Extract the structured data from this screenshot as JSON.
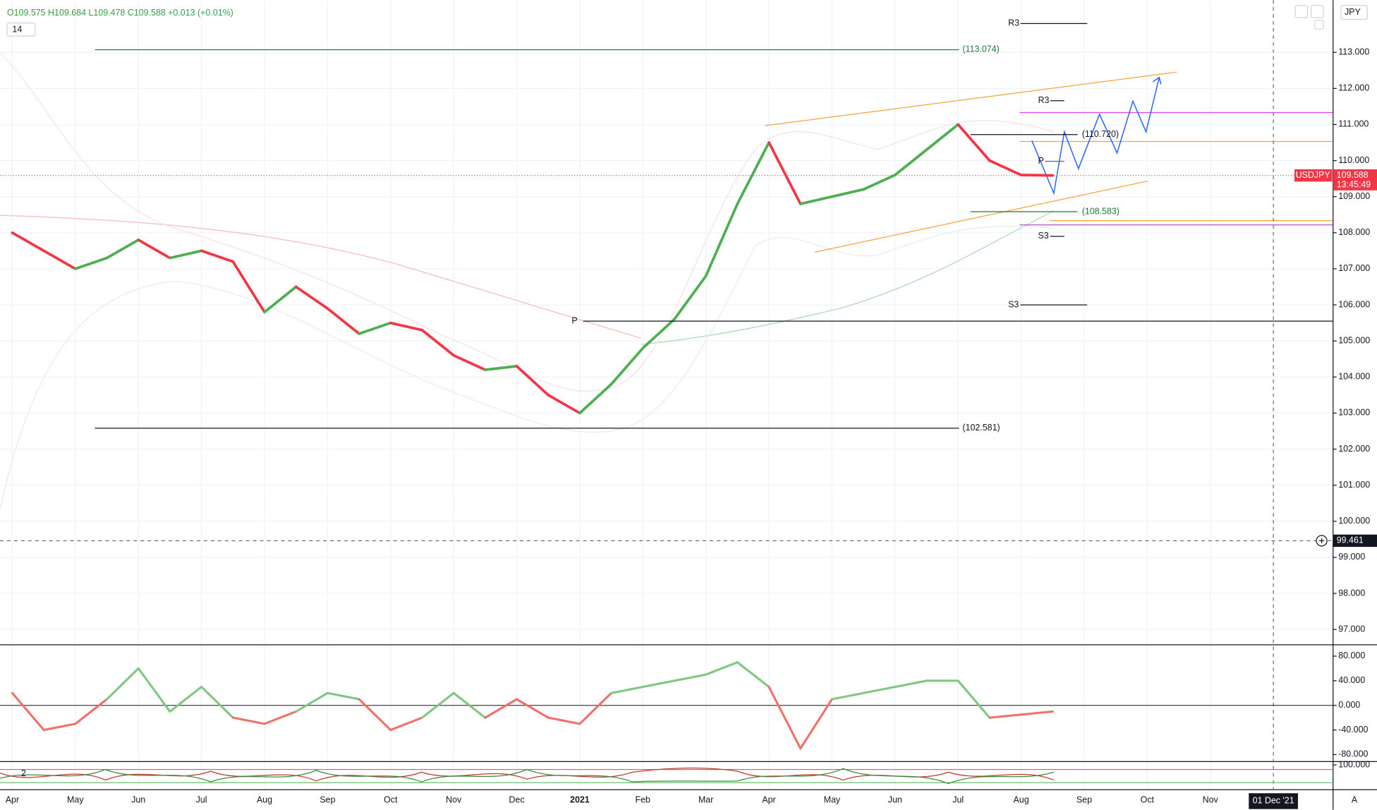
{
  "header": {
    "ohlc": "O109.575 H109.684 L109.478 C109.588 +0.013 (+0.01%)",
    "length": "14",
    "currency": "JPY",
    "auto": "A"
  },
  "chart_data": [
    {
      "type": "line",
      "series": [
        {
          "name": "USDJPY",
          "color": "#4caf50",
          "down_color": "#f23645",
          "values": [
            108.0,
            107.5,
            107.0,
            107.3,
            107.8,
            107.3,
            107.5,
            107.2,
            105.8,
            106.5,
            105.9,
            105.2,
            105.5,
            105.3,
            104.6,
            104.2,
            104.3,
            103.5,
            103.0,
            103.8,
            104.8,
            105.6,
            106.8,
            108.8,
            110.5,
            108.8,
            109.0,
            109.2,
            109.6,
            110.3,
            111.0,
            110.0,
            109.6,
            109.588,
            null,
            null,
            null,
            null,
            null,
            null
          ]
        }
      ],
      "categories": [
        "Apr",
        null,
        "May",
        null,
        "Jun",
        null,
        "Jul",
        null,
        "Aug",
        null,
        "Sep",
        null,
        "Oct",
        null,
        "Nov",
        null,
        "Dec",
        null,
        "2021",
        null,
        "Feb",
        null,
        "Mar",
        null,
        "Apr",
        null,
        "May",
        null,
        "Jun",
        null,
        "Jul",
        null,
        "Aug",
        null,
        "Sep",
        null,
        "Oct",
        null,
        "Nov",
        null
      ],
      "ylim": [
        96.6,
        114.45
      ],
      "yticks": [
        {
          "value": 113,
          "label": "113.000"
        },
        {
          "value": 112,
          "label": "112.000"
        },
        {
          "value": 111,
          "label": "111.000"
        },
        {
          "value": 110,
          "label": "110.000"
        },
        {
          "value": 109,
          "label": "109.000"
        },
        {
          "value": 108,
          "label": "108.000"
        },
        {
          "value": 107,
          "label": "107.000"
        },
        {
          "value": 106,
          "label": "106.000"
        },
        {
          "value": 105,
          "label": "105.000"
        },
        {
          "value": 104,
          "label": "104.000"
        },
        {
          "value": 103,
          "label": "103.000"
        },
        {
          "value": 102,
          "label": "102.000"
        },
        {
          "value": 101,
          "label": "101.000"
        },
        {
          "value": 100,
          "label": "100.000"
        },
        {
          "value": 99,
          "label": "99.000"
        },
        {
          "value": 98,
          "label": "98.000"
        },
        {
          "value": 97,
          "label": "97.000"
        }
      ],
      "grid": true,
      "levels": [
        {
          "label": "(113.074)",
          "value": 113.074,
          "color": "#1b7a3a"
        },
        {
          "label": "(110.720)",
          "value": 110.72,
          "color": "#131722"
        },
        {
          "label": "(108.583)",
          "value": 108.583,
          "color": "#1b7a3a"
        },
        {
          "label": "(102.581)",
          "value": 102.581,
          "color": "#131722"
        }
      ],
      "pivots": [
        {
          "label": "R3",
          "value": 113.8
        },
        {
          "label": "R3",
          "value": 111.66
        },
        {
          "label": "P",
          "value": 109.98
        },
        {
          "label": "S3",
          "value": 107.9
        },
        {
          "label": "S3",
          "value": 106.0
        },
        {
          "label": "P",
          "value": 105.55
        }
      ],
      "last_price": {
        "symbol": "USDJPY",
        "value": 109.588,
        "label": "109.588",
        "countdown": "13:45:49",
        "color": "#f23645"
      },
      "crosshair": {
        "value": 99.461,
        "label": "99.461",
        "date": "01 Dec '21"
      }
    },
    {
      "type": "line",
      "values": [
        20,
        -40,
        -30,
        10,
        60,
        -10,
        30,
        -20,
        -30,
        -10,
        20,
        10,
        -40,
        -20,
        20,
        -20,
        10,
        -20,
        -30,
        20,
        30,
        40,
        50,
        70,
        30,
        -70,
        10,
        20,
        30,
        40,
        40,
        -20,
        -15,
        -10,
        null,
        null,
        null,
        null,
        null,
        null
      ],
      "color": "#81c784",
      "down_color": "#f07167",
      "ylim": [
        -90,
        97
      ],
      "yticks": [
        {
          "value": 80,
          "label": "80.000"
        },
        {
          "value": 40,
          "label": "40.000"
        },
        {
          "value": 0,
          "label": "0.000"
        },
        {
          "value": -40,
          "label": "-40.000"
        },
        {
          "value": -80,
          "label": "-80.000"
        }
      ]
    },
    {
      "type": "line",
      "legend": "2",
      "ylim": [
        0,
        110
      ],
      "yticks": [
        {
          "value": 100,
          "label": "100.000"
        }
      ]
    }
  ]
}
